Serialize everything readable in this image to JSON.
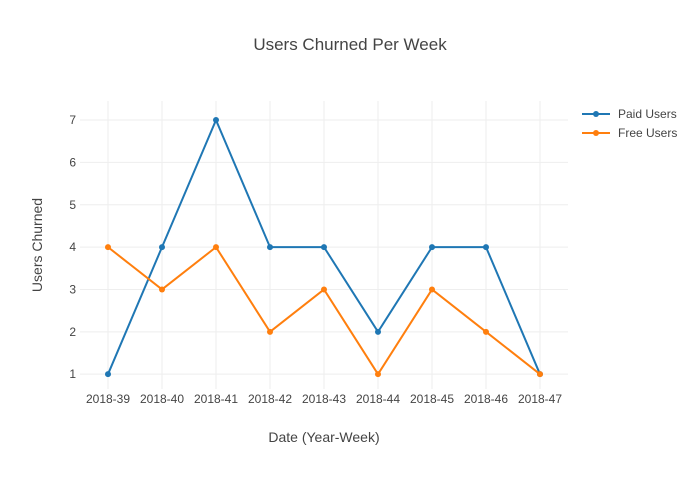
{
  "chart_data": {
    "type": "line",
    "title": "Users Churned Per Week",
    "xlabel": "Date (Year-Week)",
    "ylabel": "Users Churned",
    "categories": [
      "2018-39",
      "2018-40",
      "2018-41",
      "2018-42",
      "2018-43",
      "2018-44",
      "2018-45",
      "2018-46",
      "2018-47"
    ],
    "y_ticks": [
      1,
      2,
      3,
      4,
      5,
      6,
      7
    ],
    "ylim": [
      0.65,
      7.45
    ],
    "grid": true,
    "legend_position": "top-right",
    "series": [
      {
        "name": "Paid Users",
        "color": "#1f77b4",
        "values": [
          1,
          4,
          7,
          4,
          4,
          2,
          4,
          4,
          1
        ]
      },
      {
        "name": "Free Users",
        "color": "#ff7f0e",
        "values": [
          4,
          3,
          4,
          2,
          3,
          1,
          3,
          2,
          1
        ]
      }
    ]
  }
}
